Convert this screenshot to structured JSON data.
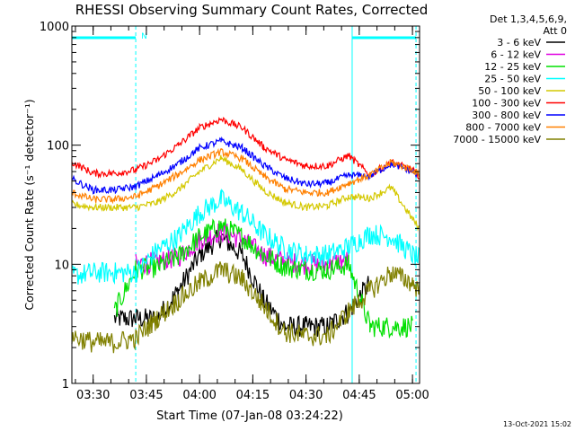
{
  "chart_data": {
    "type": "line",
    "title": "RHESSI Observing Summary Count Rates, Corrected",
    "xlabel": "Start Time (07-Jan-08 03:24:22)",
    "ylabel": "Corrected Count Rate (s⁻¹ detector⁻¹)",
    "y_scale": "log",
    "ylim": [
      1,
      1000
    ],
    "y_ticks": [
      1,
      10,
      100,
      1000
    ],
    "y_tick_labels": [
      "1",
      "10",
      "100",
      "1000"
    ],
    "xlim": [
      "03:24",
      "05:02"
    ],
    "x_tick_labels": [
      "03:30",
      "03:45",
      "04:00",
      "04:15",
      "04:30",
      "04:45",
      "05:00"
    ],
    "grid": false,
    "legend_placement": "right",
    "detector_info": [
      "Det 1,3,4,5,6,9,",
      "Att 0"
    ],
    "footer_date": "13-Oct-2021 15:02",
    "night_marker_label": "N",
    "night_intervals": [
      [
        "03:24",
        "03:42"
      ],
      [
        "04:43",
        "05:01"
      ]
    ],
    "attenuator_markers": [
      "03:42",
      "04:43",
      "05:01"
    ],
    "x_times": [
      "03:24",
      "03:30",
      "03:36",
      "03:42",
      "03:48",
      "03:54",
      "04:00",
      "04:06",
      "04:12",
      "04:18",
      "04:24",
      "04:30",
      "04:36",
      "04:42",
      "04:48",
      "04:54",
      "05:00",
      "05:02"
    ],
    "series": [
      {
        "name": "3 - 6 keV",
        "color": "#000000",
        "values": [
          null,
          null,
          3.5,
          3.5,
          3.5,
          6,
          12,
          17,
          12,
          5,
          3,
          3,
          3,
          4,
          7,
          null,
          null,
          null
        ]
      },
      {
        "name": "6 - 12 keV",
        "color": "#e000e0",
        "values": [
          null,
          null,
          null,
          10,
          10.5,
          11.5,
          16,
          19,
          16,
          12,
          10.5,
          10,
          10,
          11,
          null,
          null,
          null,
          null
        ]
      },
      {
        "name": "12 - 25 keV",
        "color": "#00e000",
        "values": [
          null,
          null,
          4,
          9,
          9.5,
          11.5,
          17,
          21,
          17,
          12,
          9.5,
          9,
          9,
          10,
          3,
          3,
          3,
          null
        ]
      },
      {
        "name": "25 - 50 keV",
        "color": "#00ffff",
        "values": [
          8,
          8.5,
          8.5,
          8.5,
          13,
          17,
          27,
          35,
          27,
          18,
          13.5,
          12,
          12,
          14,
          18,
          17,
          12,
          11
        ]
      },
      {
        "name": "50 - 100 keV",
        "color": "#d4c800",
        "values": [
          32,
          30,
          30,
          30,
          33,
          42,
          60,
          78,
          62,
          42,
          33,
          30,
          31,
          37,
          36,
          44,
          24,
          20
        ]
      },
      {
        "name": "100 - 300 keV",
        "color": "#ff0000",
        "values": [
          72,
          58,
          58,
          62,
          75,
          100,
          140,
          165,
          140,
          97,
          76,
          67,
          67,
          82,
          56,
          72,
          62,
          55
        ]
      },
      {
        "name": "300 - 800 keV",
        "color": "#0000ff",
        "values": [
          52,
          42,
          42,
          45,
          55,
          70,
          95,
          108,
          95,
          68,
          53,
          47,
          48,
          56,
          55,
          70,
          60,
          54
        ]
      },
      {
        "name": "800 - 7000 keV",
        "color": "#ff8000",
        "values": [
          40,
          35,
          35,
          37,
          45,
          57,
          75,
          88,
          77,
          55,
          43,
          40,
          40,
          48,
          56,
          72,
          62,
          56
        ]
      },
      {
        "name": "7000 - 15000 keV",
        "color": "#808000",
        "values": [
          2.5,
          2.2,
          2.2,
          2.4,
          3.5,
          5,
          7,
          9,
          7.5,
          4.5,
          2.7,
          2.5,
          2.5,
          4,
          6,
          8.5,
          7,
          6
        ]
      }
    ]
  }
}
